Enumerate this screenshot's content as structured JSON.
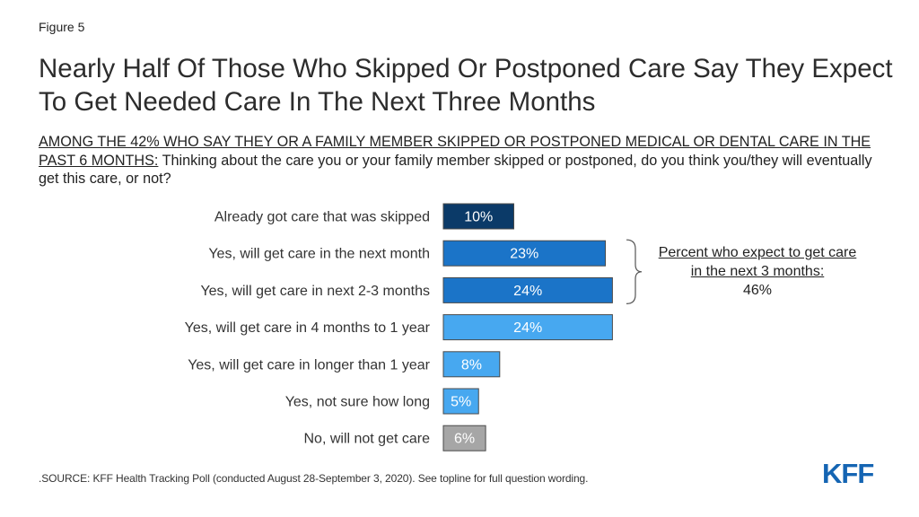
{
  "figure_label": "Figure 5",
  "title": "Nearly Half Of Those Who Skipped Or Postponed Care Say They Expect To Get Needed Care In The Next Three Months",
  "question": {
    "underlined": "AMONG THE 42% WHO SAY THEY OR A FAMILY MEMBER SKIPPED OR POSTPONED MEDICAL OR DENTAL CARE IN THE PAST 6 MONTHS:",
    "text": " Thinking about the care you or your family member skipped or postponed, do you think you/they will eventually get this care, or not?"
  },
  "annotation": {
    "label": "Percent who expect to get care in the next 3 months:",
    "value": "46%"
  },
  "source": ".SOURCE: KFF Health Tracking Poll (conducted August 28-September 3, 2020). See topline for full question wording.",
  "logo": {
    "text": "KFF",
    "color": "#1565b3"
  },
  "chart_data": {
    "type": "bar",
    "orientation": "horizontal",
    "categories": [
      "Already got care that was skipped",
      "Yes, will get care in the next month",
      "Yes, will get care in next 2-3 months",
      "Yes, will get care in 4 months to 1 year",
      "Yes, will get care in longer than 1 year",
      "Yes, not sure how long",
      "No, will not get care"
    ],
    "values": [
      10,
      23,
      24,
      24,
      8,
      5,
      6
    ],
    "value_labels": [
      "10%",
      "23%",
      "24%",
      "24%",
      "8%",
      "5%",
      "6%"
    ],
    "colors": [
      "#0b3a68",
      "#1b74c8",
      "#1b74c8",
      "#47a8f0",
      "#47a8f0",
      "#47a8f0",
      "#a6a6a6"
    ],
    "xlim": [
      0,
      24
    ],
    "grid": false,
    "legend": "none"
  }
}
